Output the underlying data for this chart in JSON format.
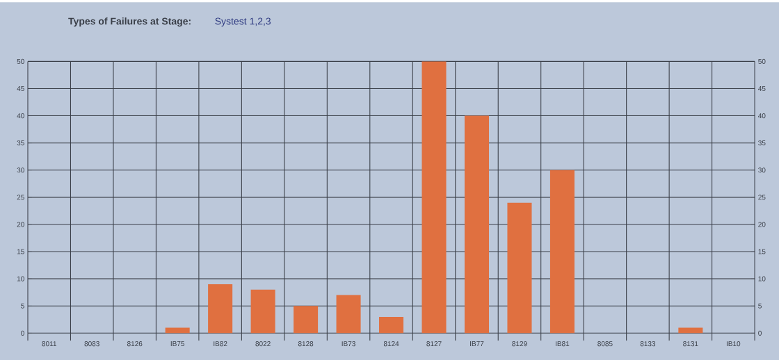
{
  "chart_data": {
    "type": "bar",
    "title": "Types of Failures at Stage:",
    "subtitle": "Systest 1,2,3",
    "categories": [
      "8011",
      "8083",
      "8126",
      "IB75",
      "IB82",
      "8022",
      "8128",
      "IB73",
      "8124",
      "8127",
      "IB77",
      "8129",
      "IB81",
      "8085",
      "8133",
      "8131",
      "IB10"
    ],
    "values": [
      0,
      0,
      0,
      1,
      9,
      8,
      5,
      7,
      3,
      50,
      40,
      24,
      30,
      0,
      0,
      1,
      0
    ],
    "color": "#e07040",
    "ylim": [
      0,
      50
    ],
    "yticks": [
      0,
      5,
      10,
      15,
      20,
      25,
      30,
      35,
      40,
      45,
      50
    ],
    "y2lim": [
      0,
      50
    ],
    "y2ticks": [
      0,
      5,
      10,
      15,
      20,
      25,
      30,
      35,
      40,
      45,
      50
    ],
    "grid": true
  }
}
